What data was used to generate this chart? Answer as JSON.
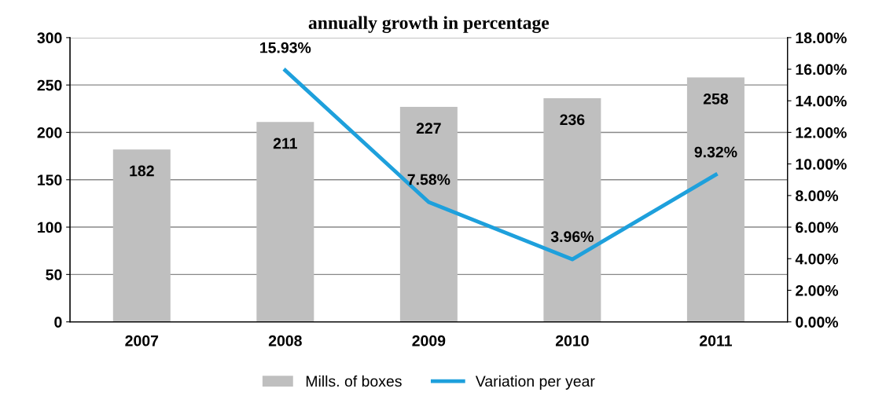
{
  "chart_data": {
    "type": "bar",
    "title": "annually growth in percentage",
    "categories": [
      "2007",
      "2008",
      "2009",
      "2010",
      "2011"
    ],
    "series": [
      {
        "name": "Mills. of boxes",
        "color": "#bfbfbf",
        "values": [
          182,
          211,
          227,
          236,
          258
        ],
        "data_labels": true
      },
      {
        "name": "Variation per year",
        "type": "line",
        "axis": "y2",
        "color": "#1ea0dc",
        "values": [
          null,
          15.93,
          7.58,
          3.96,
          9.32
        ],
        "value_labels": [
          null,
          "15.93%",
          "7.58%",
          "3.96%",
          "9.32%"
        ],
        "marker": "none",
        "line_style": "solid"
      }
    ],
    "ylim": [
      0,
      300
    ],
    "yticks": [
      0,
      50,
      100,
      150,
      200,
      250,
      300
    ],
    "y2lim": [
      0,
      18
    ],
    "y2ticks": [
      {
        "value": 0,
        "label": "0.00%"
      },
      {
        "value": 2,
        "label": "2.00%"
      },
      {
        "value": 4,
        "label": "4.00%"
      },
      {
        "value": 6,
        "label": "6.00%"
      },
      {
        "value": 8,
        "label": "8.00%"
      },
      {
        "value": 10,
        "label": "10.00%"
      },
      {
        "value": 12,
        "label": "12.00%"
      },
      {
        "value": 14,
        "label": "14.00%"
      },
      {
        "value": 16,
        "label": "16.00%"
      },
      {
        "value": 18,
        "label": "18.00%"
      }
    ],
    "grid": "y",
    "legend": "bottom"
  }
}
